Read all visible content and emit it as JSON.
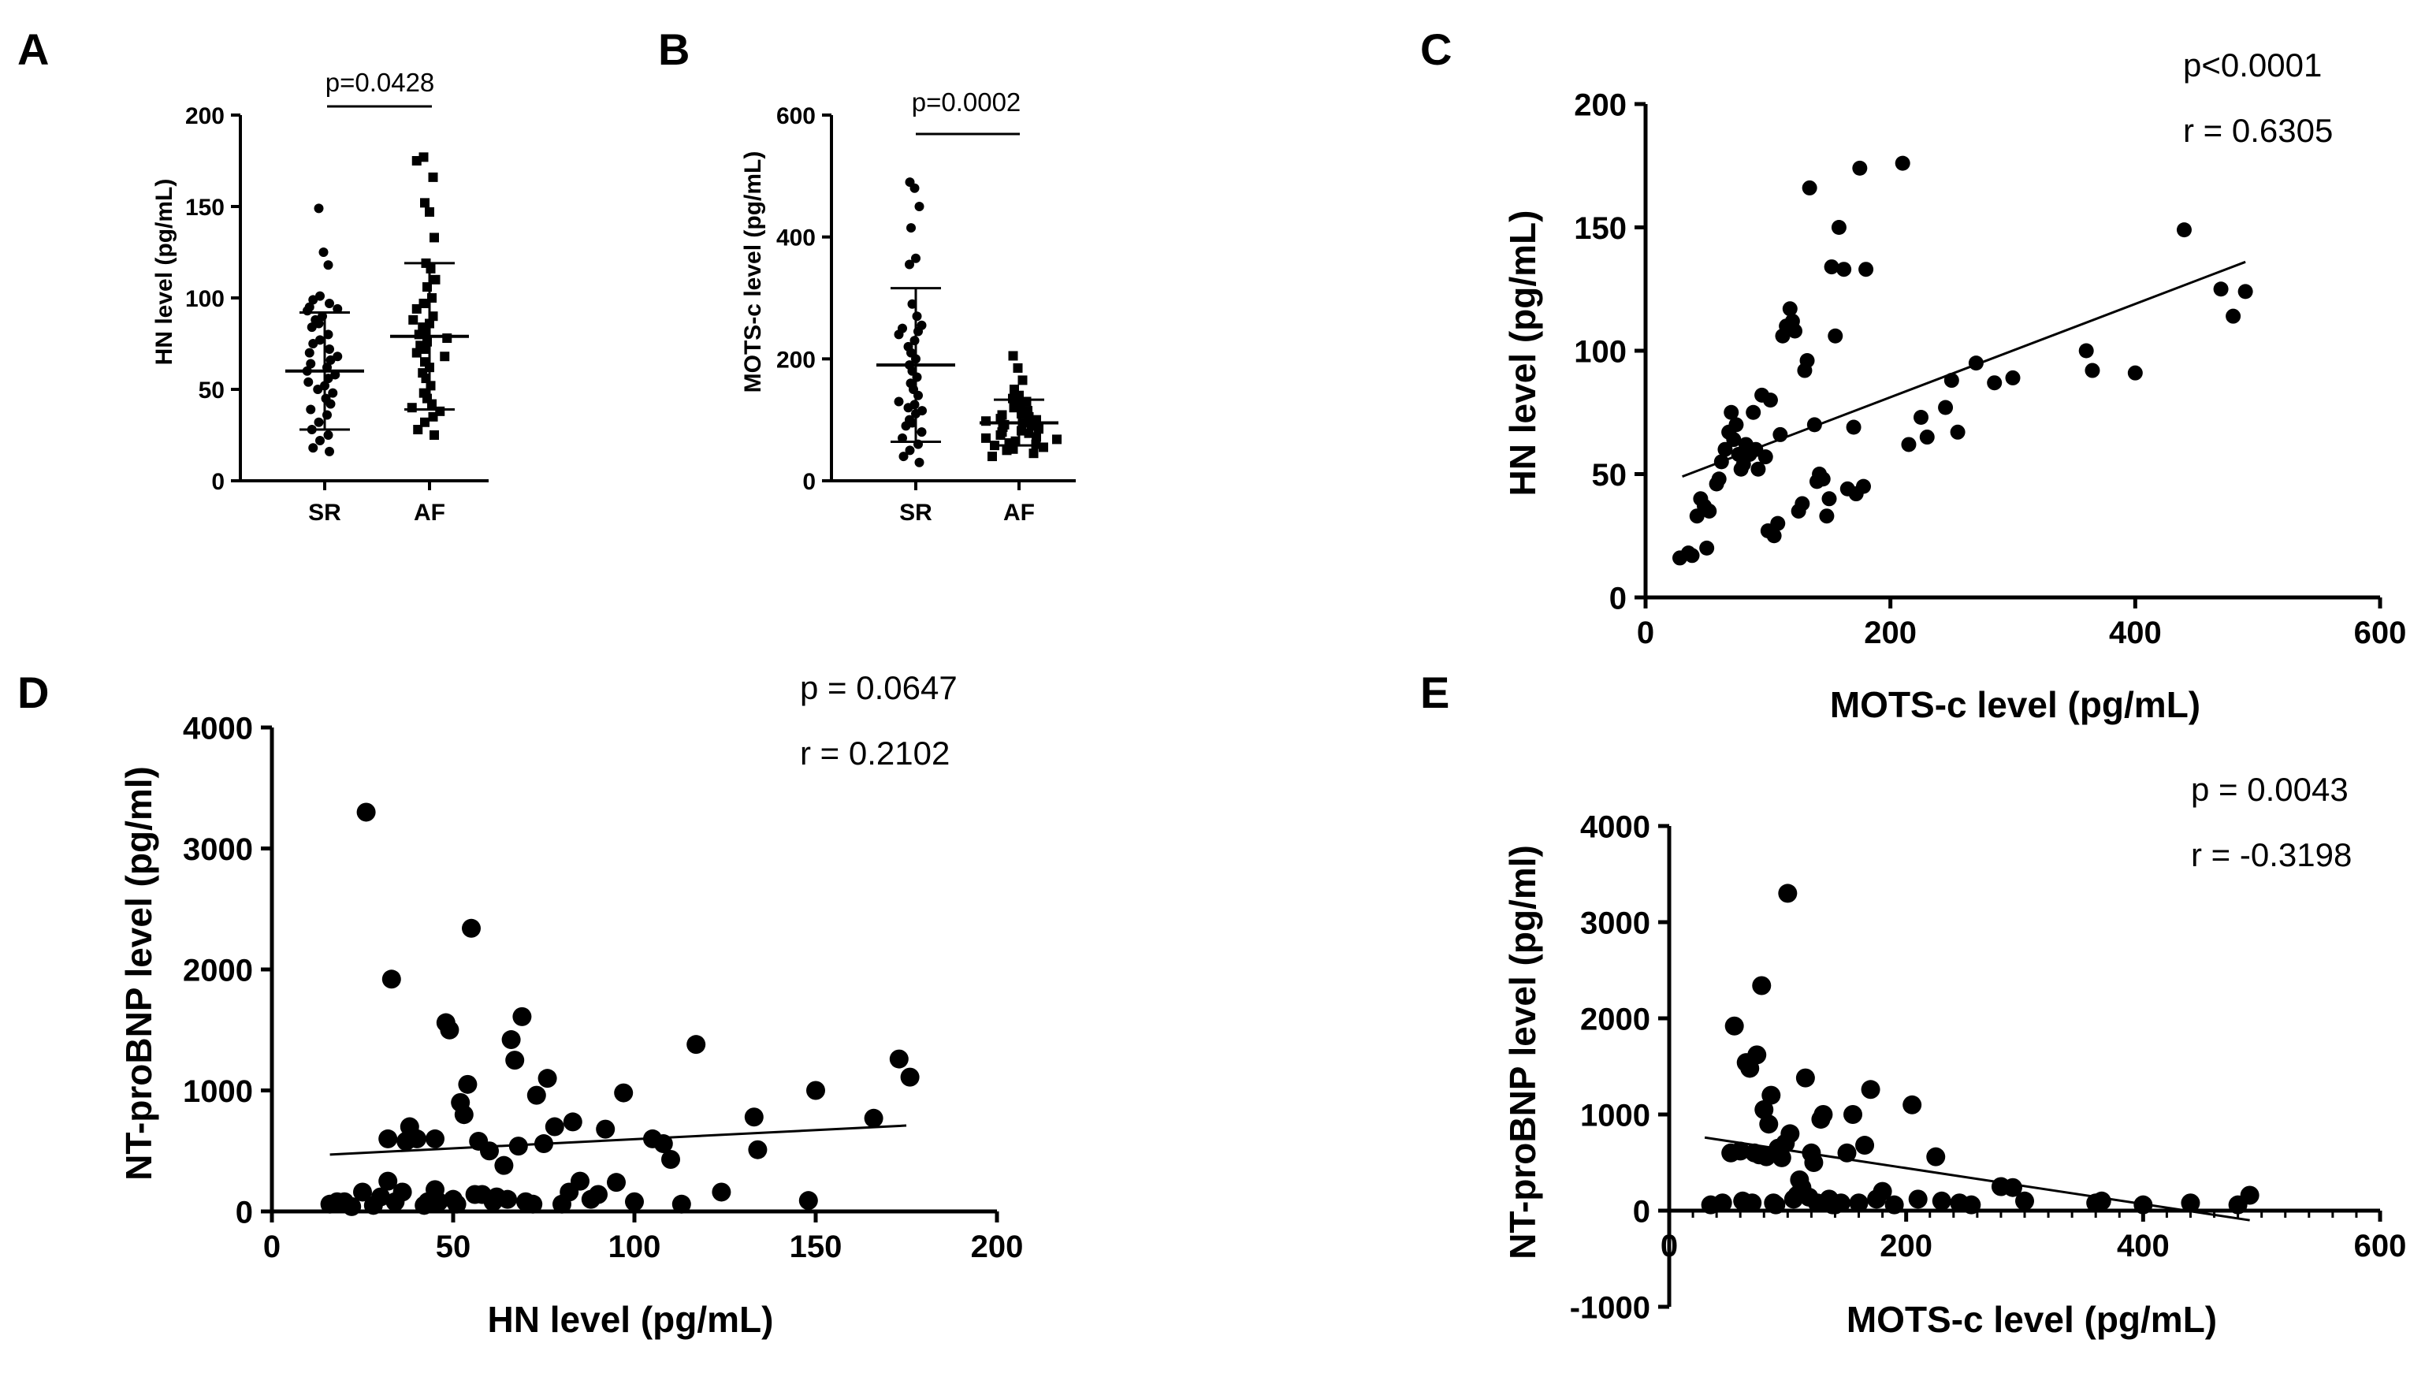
{
  "chart_data": [
    {
      "id": "A",
      "panel_label": "A",
      "type": "scatter",
      "subtype": "dot-plot-mean-sd",
      "ylabel": "HN level (pg/mL)",
      "categories": [
        "SR",
        "AF"
      ],
      "ylim": [
        0,
        200
      ],
      "yticks": [
        0,
        50,
        100,
        150,
        200
      ],
      "annotation": "p=0.0428",
      "colors": {
        "ink": "#000000"
      },
      "groups": [
        {
          "name": "SR",
          "marker": "circle",
          "mean": 60,
          "sd_low": 28,
          "sd_high": 92,
          "values": [
            149,
            125,
            118,
            101,
            99,
            97,
            95,
            94,
            93,
            90,
            88,
            86,
            84,
            80,
            77,
            75,
            72,
            70,
            68,
            66,
            64,
            62,
            60,
            58,
            56,
            54,
            52,
            50,
            48,
            45,
            42,
            39,
            36,
            32,
            28,
            25,
            22,
            18,
            16
          ]
        },
        {
          "name": "AF",
          "marker": "square",
          "mean": 79,
          "sd_low": 39,
          "sd_high": 119,
          "values": [
            177,
            175,
            166,
            152,
            147,
            133,
            119,
            116,
            110,
            106,
            100,
            97,
            94,
            90,
            88,
            86,
            84,
            82,
            80,
            78,
            76,
            74,
            72,
            70,
            68,
            65,
            62,
            59,
            56,
            52,
            48,
            45,
            42,
            40,
            38,
            35,
            32,
            28,
            25
          ]
        }
      ]
    },
    {
      "id": "B",
      "panel_label": "B",
      "type": "scatter",
      "subtype": "dot-plot-mean-sd",
      "ylabel": "MOTS-c level (pg/mL)",
      "categories": [
        "SR",
        "AF"
      ],
      "ylim": [
        0,
        600
      ],
      "yticks": [
        0,
        200,
        400,
        600
      ],
      "annotation": "p=0.0002",
      "colors": {
        "ink": "#000000"
      },
      "groups": [
        {
          "name": "SR",
          "marker": "circle",
          "mean": 190,
          "sd_low": 64,
          "sd_high": 316,
          "values": [
            490,
            480,
            450,
            415,
            365,
            355,
            290,
            270,
            255,
            250,
            245,
            240,
            230,
            220,
            210,
            200,
            190,
            180,
            170,
            160,
            150,
            140,
            130,
            125,
            120,
            115,
            110,
            100,
            95,
            90,
            80,
            70,
            60,
            50,
            40,
            30
          ]
        },
        {
          "name": "AF",
          "marker": "square",
          "mean": 95,
          "sd_low": 58,
          "sd_high": 133,
          "values": [
            205,
            185,
            165,
            150,
            140,
            135,
            130,
            125,
            120,
            115,
            110,
            108,
            105,
            102,
            100,
            98,
            95,
            92,
            90,
            88,
            85,
            82,
            80,
            78,
            75,
            72,
            70,
            68,
            65,
            62,
            60,
            58,
            55,
            52,
            50,
            45,
            40
          ]
        }
      ]
    },
    {
      "id": "C",
      "panel_label": "C",
      "type": "scatter",
      "title": "",
      "xlabel": "MOTS-c level (pg/mL)",
      "ylabel": "HN level (pg/mL)",
      "xlim": [
        0,
        600
      ],
      "ylim": [
        0,
        200
      ],
      "xticks": [
        0,
        200,
        400,
        600
      ],
      "yticks": [
        0,
        50,
        100,
        150,
        200
      ],
      "stats": {
        "p": "p<0.0001",
        "r": "r = 0.6305"
      },
      "fit_line": {
        "x": [
          30,
          490
        ],
        "y": [
          49,
          136
        ]
      },
      "colors": {
        "ink": "#000000"
      },
      "points": [
        [
          28,
          16
        ],
        [
          35,
          18
        ],
        [
          38,
          17
        ],
        [
          45,
          40
        ],
        [
          42,
          33
        ],
        [
          48,
          37
        ],
        [
          52,
          35
        ],
        [
          50,
          20
        ],
        [
          58,
          46
        ],
        [
          60,
          48
        ],
        [
          62,
          55
        ],
        [
          65,
          60
        ],
        [
          68,
          67
        ],
        [
          70,
          75
        ],
        [
          72,
          64
        ],
        [
          74,
          70
        ],
        [
          76,
          58
        ],
        [
          78,
          52
        ],
        [
          80,
          54
        ],
        [
          82,
          62
        ],
        [
          85,
          58
        ],
        [
          88,
          75
        ],
        [
          90,
          60
        ],
        [
          92,
          52
        ],
        [
          95,
          82
        ],
        [
          98,
          57
        ],
        [
          100,
          27
        ],
        [
          102,
          80
        ],
        [
          105,
          25
        ],
        [
          108,
          30
        ],
        [
          110,
          66
        ],
        [
          112,
          106
        ],
        [
          115,
          110
        ],
        [
          118,
          117
        ],
        [
          120,
          112
        ],
        [
          122,
          108
        ],
        [
          125,
          35
        ],
        [
          128,
          38
        ],
        [
          130,
          92
        ],
        [
          132,
          96
        ],
        [
          134,
          166
        ],
        [
          138,
          70
        ],
        [
          140,
          47
        ],
        [
          142,
          50
        ],
        [
          145,
          48
        ],
        [
          148,
          33
        ],
        [
          150,
          40
        ],
        [
          152,
          134
        ],
        [
          155,
          106
        ],
        [
          158,
          150
        ],
        [
          162,
          133
        ],
        [
          165,
          44
        ],
        [
          170,
          69
        ],
        [
          172,
          42
        ],
        [
          175,
          174
        ],
        [
          178,
          45
        ],
        [
          180,
          133
        ],
        [
          210,
          176
        ],
        [
          215,
          62
        ],
        [
          225,
          73
        ],
        [
          230,
          65
        ],
        [
          245,
          77
        ],
        [
          250,
          88
        ],
        [
          255,
          67
        ],
        [
          270,
          95
        ],
        [
          285,
          87
        ],
        [
          300,
          89
        ],
        [
          360,
          100
        ],
        [
          365,
          92
        ],
        [
          400,
          91
        ],
        [
          440,
          149
        ],
        [
          470,
          125
        ],
        [
          480,
          114
        ],
        [
          490,
          124
        ]
      ]
    },
    {
      "id": "D",
      "panel_label": "D",
      "type": "scatter",
      "title": "",
      "xlabel": "HN level (pg/mL)",
      "ylabel": "NT-proBNP level (pg/ml)",
      "xlim": [
        0,
        200
      ],
      "ylim": [
        0,
        4000
      ],
      "xticks": [
        0,
        50,
        100,
        150,
        200
      ],
      "yticks": [
        0,
        1000,
        2000,
        3000,
        4000
      ],
      "stats": {
        "p": "p = 0.0647",
        "r": "r = 0.2102"
      },
      "fit_line": {
        "x": [
          16,
          175
        ],
        "y": [
          470,
          710
        ]
      },
      "colors": {
        "ink": "#000000"
      },
      "points": [
        [
          16,
          60
        ],
        [
          18,
          80
        ],
        [
          20,
          80
        ],
        [
          22,
          40
        ],
        [
          25,
          160
        ],
        [
          26,
          3300
        ],
        [
          28,
          50
        ],
        [
          30,
          120
        ],
        [
          32,
          250
        ],
        [
          32,
          600
        ],
        [
          33,
          1920
        ],
        [
          34,
          80
        ],
        [
          36,
          160
        ],
        [
          37,
          580
        ],
        [
          38,
          700
        ],
        [
          40,
          600
        ],
        [
          42,
          50
        ],
        [
          43,
          80
        ],
        [
          45,
          600
        ],
        [
          45,
          180
        ],
        [
          46,
          80
        ],
        [
          48,
          1560
        ],
        [
          49,
          1500
        ],
        [
          50,
          100
        ],
        [
          51,
          60
        ],
        [
          52,
          900
        ],
        [
          53,
          800
        ],
        [
          54,
          1050
        ],
        [
          55,
          2340
        ],
        [
          56,
          140
        ],
        [
          57,
          580
        ],
        [
          58,
          140
        ],
        [
          60,
          500
        ],
        [
          61,
          80
        ],
        [
          62,
          120
        ],
        [
          64,
          380
        ],
        [
          65,
          100
        ],
        [
          66,
          1420
        ],
        [
          67,
          1250
        ],
        [
          68,
          540
        ],
        [
          69,
          1610
        ],
        [
          70,
          80
        ],
        [
          72,
          60
        ],
        [
          73,
          960
        ],
        [
          75,
          560
        ],
        [
          76,
          1100
        ],
        [
          78,
          700
        ],
        [
          80,
          60
        ],
        [
          82,
          160
        ],
        [
          83,
          740
        ],
        [
          85,
          250
        ],
        [
          88,
          100
        ],
        [
          90,
          140
        ],
        [
          92,
          680
        ],
        [
          95,
          240
        ],
        [
          97,
          980
        ],
        [
          100,
          80
        ],
        [
          105,
          600
        ],
        [
          108,
          560
        ],
        [
          110,
          430
        ],
        [
          113,
          60
        ],
        [
          117,
          1380
        ],
        [
          124,
          160
        ],
        [
          133,
          780
        ],
        [
          134,
          510
        ],
        [
          148,
          90
        ],
        [
          150,
          1000
        ],
        [
          166,
          770
        ],
        [
          173,
          1260
        ],
        [
          176,
          1110
        ]
      ]
    },
    {
      "id": "E",
      "panel_label": "E",
      "type": "scatter",
      "title": "",
      "xlabel": "MOTS-c level (pg/mL)",
      "ylabel": "NT-proBNP level (pg/ml)",
      "xlim": [
        0,
        600
      ],
      "ylim": [
        -1000,
        4000
      ],
      "xticks": [
        0,
        200,
        400,
        600
      ],
      "yticks": [
        -1000,
        0,
        1000,
        2000,
        3000,
        4000
      ],
      "stats": {
        "p": "p = 0.0043",
        "r": "r = -0.3198"
      },
      "fit_line": {
        "x": [
          30,
          490
        ],
        "y": [
          760,
          -100
        ]
      },
      "colors": {
        "ink": "#000000"
      },
      "points": [
        [
          35,
          60
        ],
        [
          45,
          80
        ],
        [
          52,
          600
        ],
        [
          55,
          1920
        ],
        [
          60,
          620
        ],
        [
          62,
          100
        ],
        [
          65,
          1540
        ],
        [
          68,
          1480
        ],
        [
          70,
          80
        ],
        [
          72,
          600
        ],
        [
          74,
          1620
        ],
        [
          76,
          580
        ],
        [
          78,
          2340
        ],
        [
          80,
          1050
        ],
        [
          82,
          560
        ],
        [
          84,
          900
        ],
        [
          86,
          1200
        ],
        [
          88,
          80
        ],
        [
          90,
          60
        ],
        [
          92,
          650
        ],
        [
          95,
          550
        ],
        [
          98,
          700
        ],
        [
          100,
          3300
        ],
        [
          102,
          800
        ],
        [
          105,
          120
        ],
        [
          108,
          160
        ],
        [
          110,
          320
        ],
        [
          112,
          240
        ],
        [
          115,
          1380
        ],
        [
          118,
          140
        ],
        [
          120,
          600
        ],
        [
          122,
          500
        ],
        [
          125,
          80
        ],
        [
          128,
          950
        ],
        [
          130,
          1000
        ],
        [
          132,
          80
        ],
        [
          135,
          120
        ],
        [
          138,
          60
        ],
        [
          140,
          60
        ],
        [
          145,
          80
        ],
        [
          150,
          600
        ],
        [
          155,
          1000
        ],
        [
          160,
          80
        ],
        [
          165,
          680
        ],
        [
          170,
          1260
        ],
        [
          175,
          120
        ],
        [
          180,
          200
        ],
        [
          190,
          60
        ],
        [
          205,
          1100
        ],
        [
          210,
          120
        ],
        [
          225,
          560
        ],
        [
          230,
          100
        ],
        [
          245,
          80
        ],
        [
          255,
          60
        ],
        [
          280,
          250
        ],
        [
          290,
          240
        ],
        [
          300,
          100
        ],
        [
          360,
          80
        ],
        [
          365,
          100
        ],
        [
          400,
          60
        ],
        [
          440,
          80
        ],
        [
          480,
          60
        ],
        [
          490,
          160
        ]
      ]
    }
  ]
}
